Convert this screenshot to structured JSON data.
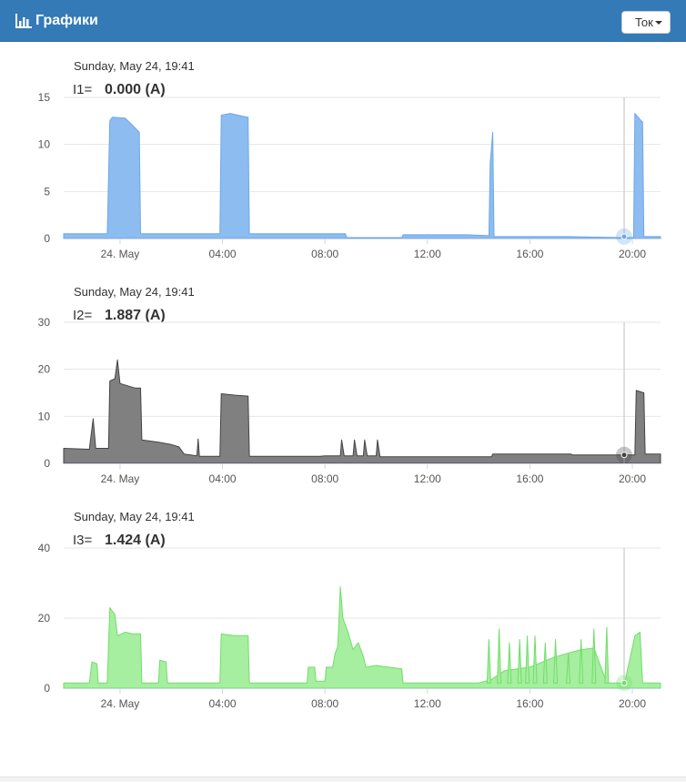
{
  "header": {
    "title": "Графики",
    "dropdown_value": "Ток",
    "color": "#337ab7"
  },
  "chart_data": [
    {
      "type": "area",
      "date_label": "Sunday, May 24, 19:41",
      "series_label": "I1=",
      "value_text": "0.000 (A)",
      "color_fill": "#8cbcf0",
      "color_line": "#6ea8e8",
      "y_ticks": [
        0,
        5,
        10,
        15
      ],
      "ylim": [
        0,
        15
      ],
      "x_ticks": [
        "24. May",
        "04:00",
        "08:00",
        "12:00",
        "16:00",
        "20:00"
      ],
      "x_tick_hours": [
        0,
        4,
        8,
        12,
        16,
        20
      ],
      "xlim_hours": [
        -2.2,
        21.1
      ],
      "crosshair_hour": 19.68,
      "points": [
        [
          -2.2,
          0.5
        ],
        [
          -0.5,
          0.5
        ],
        [
          -0.4,
          12.5
        ],
        [
          -0.3,
          12.9
        ],
        [
          0.2,
          12.8
        ],
        [
          0.5,
          12.0
        ],
        [
          0.75,
          11.3
        ],
        [
          0.8,
          0.5
        ],
        [
          3.9,
          0.5
        ],
        [
          3.95,
          13.1
        ],
        [
          4.3,
          13.3
        ],
        [
          4.8,
          13.0
        ],
        [
          5.0,
          12.9
        ],
        [
          5.05,
          0.5
        ],
        [
          8.8,
          0.5
        ],
        [
          8.85,
          0.1
        ],
        [
          11.0,
          0.1
        ],
        [
          11.05,
          0.4
        ],
        [
          13.5,
          0.4
        ],
        [
          14.4,
          0.3
        ],
        [
          14.45,
          8.0
        ],
        [
          14.55,
          11.3
        ],
        [
          14.6,
          0.2
        ],
        [
          17.5,
          0.2
        ],
        [
          19.7,
          0.1
        ],
        [
          20.05,
          0.1
        ],
        [
          20.1,
          13.3
        ],
        [
          20.35,
          12.5
        ],
        [
          20.4,
          12.4
        ],
        [
          20.45,
          0.2
        ],
        [
          21.1,
          0.2
        ]
      ]
    },
    {
      "type": "area",
      "date_label": "Sunday, May 24, 19:41",
      "series_label": "I2=",
      "value_text": "1.887 (A)",
      "color_fill": "#808080",
      "color_line": "#444444",
      "y_ticks": [
        0,
        10,
        20,
        30
      ],
      "ylim": [
        0,
        30
      ],
      "x_ticks": [
        "24. May",
        "04:00",
        "08:00",
        "12:00",
        "16:00",
        "20:00"
      ],
      "x_tick_hours": [
        0,
        4,
        8,
        12,
        16,
        20
      ],
      "xlim_hours": [
        -2.2,
        21.1
      ],
      "crosshair_hour": 19.68,
      "points": [
        [
          -2.2,
          3.2
        ],
        [
          -1.2,
          3.0
        ],
        [
          -1.05,
          9.5
        ],
        [
          -0.95,
          3.2
        ],
        [
          -0.45,
          3.2
        ],
        [
          -0.4,
          17.5
        ],
        [
          -0.2,
          18.0
        ],
        [
          -0.1,
          22.0
        ],
        [
          0.0,
          17.0
        ],
        [
          0.3,
          16.5
        ],
        [
          0.6,
          16.0
        ],
        [
          0.8,
          16.0
        ],
        [
          0.85,
          5.0
        ],
        [
          1.5,
          4.5
        ],
        [
          2.0,
          4.0
        ],
        [
          2.3,
          3.5
        ],
        [
          2.5,
          2.0
        ],
        [
          3.0,
          1.6
        ],
        [
          3.05,
          5.2
        ],
        [
          3.1,
          1.5
        ],
        [
          3.9,
          1.5
        ],
        [
          3.95,
          14.8
        ],
        [
          4.5,
          14.5
        ],
        [
          5.0,
          14.3
        ],
        [
          5.05,
          1.5
        ],
        [
          7.8,
          1.5
        ],
        [
          8.0,
          1.6
        ],
        [
          8.6,
          1.6
        ],
        [
          8.65,
          5.0
        ],
        [
          8.75,
          1.6
        ],
        [
          9.1,
          1.6
        ],
        [
          9.15,
          5.0
        ],
        [
          9.25,
          1.6
        ],
        [
          9.5,
          1.6
        ],
        [
          9.55,
          5.0
        ],
        [
          9.65,
          1.6
        ],
        [
          10.0,
          1.6
        ],
        [
          10.05,
          5.0
        ],
        [
          10.15,
          1.4
        ],
        [
          12.0,
          1.4
        ],
        [
          14.5,
          1.4
        ],
        [
          14.55,
          2.0
        ],
        [
          16.0,
          2.0
        ],
        [
          17.6,
          2.0
        ],
        [
          17.65,
          1.8
        ],
        [
          20.1,
          1.8
        ],
        [
          20.15,
          15.5
        ],
        [
          20.45,
          15.0
        ],
        [
          20.5,
          2.0
        ],
        [
          21.1,
          2.0
        ]
      ]
    },
    {
      "type": "area",
      "date_label": "Sunday, May 24, 19:41",
      "series_label": "I3=",
      "value_text": "1.424 (A)",
      "color_fill": "#a6eea0",
      "color_line": "#72dd6a",
      "y_ticks": [
        0,
        20,
        40
      ],
      "ylim": [
        0,
        40
      ],
      "x_ticks": [
        "24. May",
        "04:00",
        "08:00",
        "12:00",
        "16:00",
        "20:00"
      ],
      "x_tick_hours": [
        0,
        4,
        8,
        12,
        16,
        20
      ],
      "xlim_hours": [
        -2.2,
        21.1
      ],
      "crosshair_hour": 19.68,
      "points": [
        [
          -2.2,
          1.5
        ],
        [
          -1.2,
          1.5
        ],
        [
          -1.1,
          7.5
        ],
        [
          -0.9,
          7.0
        ],
        [
          -0.85,
          1.5
        ],
        [
          -0.5,
          1.5
        ],
        [
          -0.4,
          23.0
        ],
        [
          -0.2,
          21.0
        ],
        [
          -0.1,
          15.0
        ],
        [
          0.2,
          16.0
        ],
        [
          0.5,
          15.5
        ],
        [
          0.8,
          15.5
        ],
        [
          0.85,
          1.5
        ],
        [
          1.5,
          1.5
        ],
        [
          1.55,
          8.0
        ],
        [
          1.8,
          7.5
        ],
        [
          1.85,
          1.5
        ],
        [
          3.9,
          1.5
        ],
        [
          3.95,
          15.5
        ],
        [
          4.5,
          15.0
        ],
        [
          5.0,
          15.0
        ],
        [
          5.05,
          1.5
        ],
        [
          7.3,
          1.5
        ],
        [
          7.35,
          6.0
        ],
        [
          7.6,
          6.0
        ],
        [
          7.65,
          2.0
        ],
        [
          8.0,
          2.0
        ],
        [
          8.05,
          6.0
        ],
        [
          8.3,
          6.0
        ],
        [
          8.4,
          10.0
        ],
        [
          8.5,
          12.0
        ],
        [
          8.6,
          29.0
        ],
        [
          8.7,
          20.0
        ],
        [
          8.9,
          16.0
        ],
        [
          9.1,
          11.0
        ],
        [
          9.3,
          13.0
        ],
        [
          9.5,
          9.0
        ],
        [
          9.6,
          6.0
        ],
        [
          10.0,
          6.5
        ],
        [
          10.5,
          6.0
        ],
        [
          11.0,
          5.5
        ],
        [
          11.05,
          1.5
        ],
        [
          12.0,
          1.5
        ],
        [
          14.0,
          1.5
        ],
        [
          14.5,
          2.5
        ],
        [
          15.0,
          5.0
        ],
        [
          16.0,
          6.0
        ],
        [
          16.5,
          7.5
        ],
        [
          17.0,
          9.0
        ],
        [
          17.5,
          10.0
        ],
        [
          18.0,
          11.0
        ],
        [
          18.5,
          11.5
        ],
        [
          19.0,
          1.5
        ],
        [
          19.7,
          1.5
        ],
        [
          20.1,
          15.0
        ],
        [
          20.3,
          16.0
        ],
        [
          20.4,
          1.5
        ],
        [
          21.1,
          1.5
        ]
      ],
      "spikes": [
        [
          14.4,
          14.0
        ],
        [
          14.8,
          17.0
        ],
        [
          15.2,
          13.0
        ],
        [
          15.6,
          14.0
        ],
        [
          15.9,
          15.0
        ],
        [
          16.2,
          15.0
        ],
        [
          16.6,
          13.0
        ],
        [
          17.0,
          14.0
        ],
        [
          17.5,
          10.0
        ],
        [
          18.0,
          14.0
        ],
        [
          18.5,
          17.0
        ],
        [
          19.0,
          17.5
        ]
      ]
    }
  ]
}
